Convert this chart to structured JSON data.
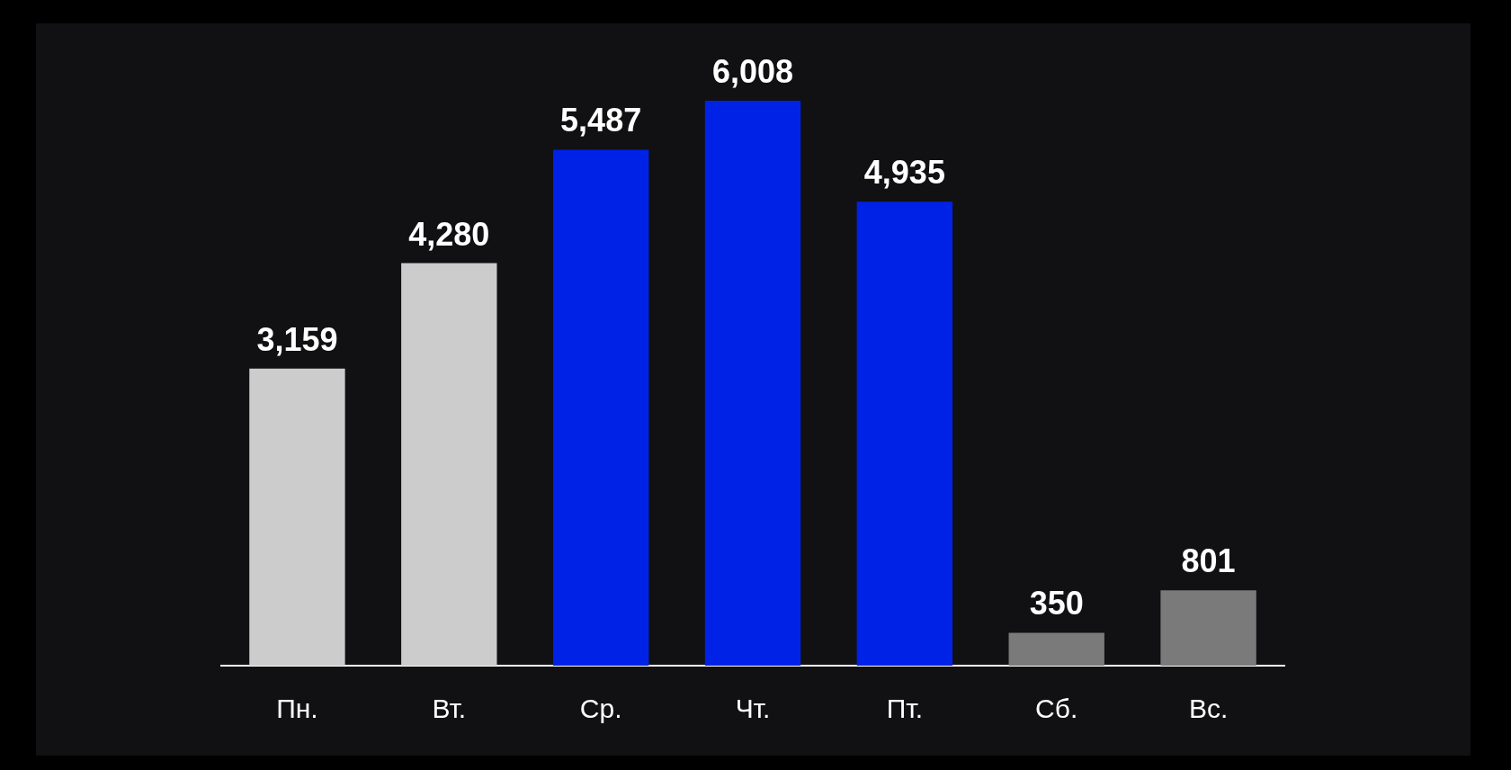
{
  "chart_data": {
    "type": "bar",
    "categories": [
      "Пн.",
      "Вт.",
      "Ср.",
      "Чт.",
      "Пт.",
      "Сб.",
      "Вс."
    ],
    "values": [
      3159,
      4280,
      5487,
      6008,
      4935,
      350,
      801
    ],
    "colors": [
      "#cccccc",
      "#cccccc",
      "#0022e6",
      "#0022e6",
      "#0022e6",
      "#7a7a7a",
      "#7a7a7a"
    ],
    "value_labels": [
      "3,159",
      "4,280",
      "5,487",
      "6,008",
      "4,935",
      "350",
      "801"
    ],
    "legend": false
  }
}
